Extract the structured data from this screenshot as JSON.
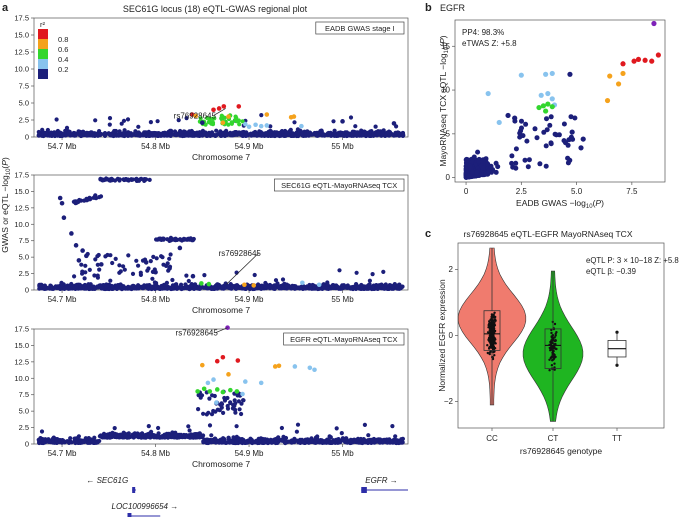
{
  "panel_labels": {
    "a": "a",
    "b": "b",
    "c": "c"
  },
  "colors": {
    "navy": "#1c1f7a",
    "red": "#e0191f",
    "orange": "#f5a21c",
    "green": "#33d62e",
    "light_blue": "#88c3ee",
    "purple": "#7e22b8",
    "violin_cc": "#f07b6e",
    "violin_ct": "#1fb521"
  },
  "chart_data": [
    {
      "id": "regional-top",
      "type": "scatter",
      "title": "SEC61G locus (18) eQTL-GWAS regional plot",
      "legend_title": "r²",
      "legend_labels": [
        "0.8",
        "0.6",
        "0.4",
        "0.2"
      ],
      "legend_colors": [
        "#e0191f",
        "#f5a21c",
        "#33d62e",
        "#88c3ee",
        "#1c1f7a"
      ],
      "box_label": "EADB GWAS stage I",
      "xlabel": "Chromosome 7",
      "xlim": [
        54.67,
        55.07
      ],
      "xticks": [
        54.7,
        54.8,
        54.9,
        55.0
      ],
      "xtick_labels": [
        "54.7 Mb",
        "54.8 Mb",
        "54.9 Mb",
        "55 Mb"
      ],
      "ylim": [
        0,
        17.5
      ],
      "yticks": [
        0,
        2.5,
        5,
        7.5,
        10,
        12.5,
        15,
        17.5
      ],
      "ytick_labels": [
        "0",
        "2.5",
        "5.0",
        "7.5",
        "10.0",
        "12.5",
        "15.0",
        "17.5"
      ],
      "annotation": {
        "label": "rs76928645",
        "x": 54.875,
        "y": 4.2
      },
      "points": [
        {
          "x": 54.862,
          "y": 4.0,
          "c": "red"
        },
        {
          "x": 54.868,
          "y": 4.2,
          "c": "red"
        },
        {
          "x": 54.873,
          "y": 4.5,
          "c": "red"
        },
        {
          "x": 54.889,
          "y": 4.5,
          "c": "red"
        },
        {
          "x": 54.839,
          "y": 3.3,
          "c": "red"
        },
        {
          "x": 54.843,
          "y": 3.1,
          "c": "orange"
        },
        {
          "x": 54.878,
          "y": 3.0,
          "c": "orange"
        },
        {
          "x": 54.945,
          "y": 2.9,
          "c": "orange"
        },
        {
          "x": 54.948,
          "y": 3.0,
          "c": "orange"
        },
        {
          "x": 54.919,
          "y": 3.3,
          "c": "orange"
        },
        {
          "x": 54.896,
          "y": 1.9,
          "c": "light_blue"
        },
        {
          "x": 54.907,
          "y": 1.8,
          "c": "light_blue"
        },
        {
          "x": 54.913,
          "y": 1.6,
          "c": "light_blue"
        },
        {
          "x": 54.919,
          "y": 1.7,
          "c": "light_blue"
        },
        {
          "x": 54.956,
          "y": 1.6,
          "c": "light_blue"
        },
        {
          "x": 54.9,
          "y": 1.5,
          "c": "light_blue"
        },
        {
          "x": 54.872,
          "y": 2.1,
          "c": "orange"
        },
        {
          "x": 55.0,
          "y": 2.3,
          "c": "navy"
        },
        {
          "x": 55.055,
          "y": 2.0,
          "c": "navy"
        },
        {
          "x": 54.85,
          "y": 2.1,
          "c": "navy"
        }
      ]
    },
    {
      "id": "regional-middle",
      "type": "scatter",
      "box_label": "SEC61G eQTL-MayoRNAseq TCX",
      "xlabel": "Chromosome 7",
      "xlim": [
        54.67,
        55.07
      ],
      "xticks": [
        54.7,
        54.8,
        54.9,
        55.0
      ],
      "xtick_labels": [
        "54.7 Mb",
        "54.8 Mb",
        "54.9 Mb",
        "55 Mb"
      ],
      "ylabel": "GWAS or eQTL −log10(P)",
      "ylim": [
        0,
        17.5
      ],
      "yticks": [
        0,
        2.5,
        5,
        7.5,
        10,
        12.5,
        15,
        17.5
      ],
      "ytick_labels": [
        "0",
        "2.5",
        "5.0",
        "7.5",
        "10.0",
        "12.5",
        "15.0",
        "17.5"
      ],
      "annotation": {
        "label": "rs76928645",
        "x": 54.876,
        "y": 0.9
      },
      "points": [
        {
          "x": 54.7,
          "y": 13.2,
          "c": "navy"
        },
        {
          "x": 54.698,
          "y": 14.0,
          "c": "navy"
        },
        {
          "x": 54.702,
          "y": 11.0,
          "c": "navy"
        },
        {
          "x": 54.71,
          "y": 8.6,
          "c": "navy"
        },
        {
          "x": 54.715,
          "y": 6.8,
          "c": "navy"
        },
        {
          "x": 54.718,
          "y": 4.5,
          "c": "navy"
        },
        {
          "x": 54.722,
          "y": 6.0,
          "c": "navy"
        },
        {
          "x": 54.726,
          "y": 5.2,
          "c": "navy"
        },
        {
          "x": 54.742,
          "y": 3.9,
          "c": "navy"
        },
        {
          "x": 54.79,
          "y": 4.2,
          "c": "navy"
        },
        {
          "x": 54.805,
          "y": 7.8,
          "c": "navy"
        },
        {
          "x": 54.815,
          "y": 3.3,
          "c": "navy"
        },
        {
          "x": 54.8,
          "y": 2.7,
          "c": "navy"
        },
        {
          "x": 54.826,
          "y": 6.4,
          "c": "navy"
        },
        {
          "x": 54.84,
          "y": 2.1,
          "c": "navy"
        },
        {
          "x": 54.849,
          "y": 1.0,
          "c": "green"
        },
        {
          "x": 54.857,
          "y": 0.9,
          "c": "green"
        },
        {
          "x": 54.895,
          "y": 0.8,
          "c": "orange"
        },
        {
          "x": 54.905,
          "y": 0.7,
          "c": "orange"
        },
        {
          "x": 54.957,
          "y": 1.1,
          "c": "light_blue"
        },
        {
          "x": 54.975,
          "y": 0.8,
          "c": "light_blue"
        }
      ]
    },
    {
      "id": "regional-bottom",
      "type": "scatter",
      "box_label": "EGFR eQTL-MayoRNAseq TCX",
      "xlabel": "Chromosome 7",
      "xlim": [
        54.67,
        55.07
      ],
      "xticks": [
        54.7,
        54.8,
        54.9,
        55.0
      ],
      "xtick_labels": [
        "54.7 Mb",
        "54.8 Mb",
        "54.9 Mb",
        "55 Mb"
      ],
      "ylim": [
        0,
        17.5
      ],
      "yticks": [
        0,
        2.5,
        5,
        7.5,
        10,
        12.5,
        15,
        17.5
      ],
      "ytick_labels": [
        "0",
        "2.5",
        "5.0",
        "7.5",
        "10.0",
        "12.5",
        "15.0",
        "17.5"
      ],
      "annotation": {
        "label": "rs76928645",
        "x": 54.877,
        "y": 17.7
      },
      "points": [
        {
          "x": 54.877,
          "y": 17.7,
          "c": "purple"
        },
        {
          "x": 54.866,
          "y": 12.6,
          "c": "red"
        },
        {
          "x": 54.872,
          "y": 13.2,
          "c": "red"
        },
        {
          "x": 54.888,
          "y": 12.7,
          "c": "red"
        },
        {
          "x": 54.85,
          "y": 12.0,
          "c": "orange"
        },
        {
          "x": 54.928,
          "y": 11.8,
          "c": "orange"
        },
        {
          "x": 54.932,
          "y": 11.9,
          "c": "orange"
        },
        {
          "x": 54.878,
          "y": 10.6,
          "c": "orange"
        },
        {
          "x": 54.949,
          "y": 11.8,
          "c": "light_blue"
        },
        {
          "x": 54.965,
          "y": 11.6,
          "c": "light_blue"
        },
        {
          "x": 54.97,
          "y": 11.3,
          "c": "light_blue"
        },
        {
          "x": 54.896,
          "y": 9.5,
          "c": "light_blue"
        },
        {
          "x": 54.913,
          "y": 9.3,
          "c": "light_blue"
        },
        {
          "x": 54.856,
          "y": 9.3,
          "c": "light_blue"
        },
        {
          "x": 54.862,
          "y": 9.8,
          "c": "light_blue"
        },
        {
          "x": 54.845,
          "y": 8.0,
          "c": "green"
        },
        {
          "x": 54.852,
          "y": 8.4,
          "c": "green"
        },
        {
          "x": 54.858,
          "y": 8.0,
          "c": "green"
        },
        {
          "x": 54.866,
          "y": 8.3,
          "c": "green"
        },
        {
          "x": 54.872,
          "y": 7.9,
          "c": "green"
        },
        {
          "x": 54.88,
          "y": 8.2,
          "c": "green"
        },
        {
          "x": 54.887,
          "y": 8.0,
          "c": "green"
        },
        {
          "x": 54.893,
          "y": 7.6,
          "c": "light_blue"
        },
        {
          "x": 54.865,
          "y": 6.3,
          "c": "light_blue"
        }
      ]
    },
    {
      "id": "egfr-scatter",
      "type": "scatter",
      "title": "EGFR",
      "annotations": [
        "PP4: 98.3%",
        "eTWAS Z: +5.8"
      ],
      "xlabel": "EADB GWAS −log10(P)",
      "ylabel": "MayoRNAseq TCX sQTL −log10(P)",
      "xlim": [
        -0.5,
        9.0
      ],
      "xticks": [
        0,
        2.5,
        5.0,
        7.5
      ],
      "xtick_labels": [
        "0",
        "2.5",
        "5.0",
        "7.5"
      ],
      "ylim": [
        -0.5,
        18.0
      ],
      "yticks": [
        0,
        5,
        10,
        15
      ],
      "ytick_labels": [
        "0",
        "5",
        "10",
        "15"
      ],
      "points": [
        {
          "x": 8.5,
          "y": 17.6,
          "c": "purple"
        },
        {
          "x": 7.6,
          "y": 13.3,
          "c": "red"
        },
        {
          "x": 7.8,
          "y": 13.5,
          "c": "red"
        },
        {
          "x": 8.1,
          "y": 13.4,
          "c": "red"
        },
        {
          "x": 8.4,
          "y": 13.3,
          "c": "red"
        },
        {
          "x": 8.7,
          "y": 14.0,
          "c": "red"
        },
        {
          "x": 7.1,
          "y": 13.0,
          "c": "red"
        },
        {
          "x": 6.5,
          "y": 11.6,
          "c": "orange"
        },
        {
          "x": 7.1,
          "y": 11.9,
          "c": "orange"
        },
        {
          "x": 6.4,
          "y": 8.8,
          "c": "orange"
        },
        {
          "x": 6.9,
          "y": 10.7,
          "c": "orange"
        },
        {
          "x": 3.6,
          "y": 11.8,
          "c": "light_blue"
        },
        {
          "x": 3.9,
          "y": 11.9,
          "c": "light_blue"
        },
        {
          "x": 2.5,
          "y": 11.7,
          "c": "light_blue"
        },
        {
          "x": 3.4,
          "y": 9.4,
          "c": "light_blue"
        },
        {
          "x": 3.7,
          "y": 9.6,
          "c": "light_blue"
        },
        {
          "x": 3.9,
          "y": 9.0,
          "c": "light_blue"
        },
        {
          "x": 4.0,
          "y": 8.3,
          "c": "light_blue"
        },
        {
          "x": 1.0,
          "y": 9.6,
          "c": "light_blue"
        },
        {
          "x": 1.5,
          "y": 6.3,
          "c": "light_blue"
        },
        {
          "x": 4.7,
          "y": 11.8,
          "c": "navy"
        },
        {
          "x": 1.9,
          "y": 7.1,
          "c": "navy"
        },
        {
          "x": 2.2,
          "y": 6.8,
          "c": "navy"
        },
        {
          "x": 3.3,
          "y": 8.0,
          "c": "green"
        },
        {
          "x": 3.5,
          "y": 8.2,
          "c": "green"
        },
        {
          "x": 3.7,
          "y": 8.4,
          "c": "green"
        },
        {
          "x": 3.9,
          "y": 8.1,
          "c": "green"
        },
        {
          "x": 3.6,
          "y": 7.6,
          "c": "green"
        },
        {
          "x": 4.8,
          "y": 5.2,
          "c": "navy"
        },
        {
          "x": 5.3,
          "y": 4.4,
          "c": "navy"
        },
        {
          "x": 5.2,
          "y": 3.4,
          "c": "navy"
        }
      ]
    },
    {
      "id": "violin",
      "type": "violin",
      "title": "rs76928645 eQTL-EGFR MayoRNAseq TCX",
      "annotations": [
        "eQTL P: 3 × 10−18 Z: +5.8",
        "eQTL β: −0.39"
      ],
      "xlabel": "rs76928645 genotype",
      "ylabel": "Normalized EGFR expression",
      "categories": [
        "CC",
        "CT",
        "TT"
      ],
      "ylim": [
        -2.8,
        2.8
      ],
      "yticks": [
        -2,
        0,
        2
      ],
      "ytick_labels": [
        "−2",
        "0",
        "2"
      ],
      "groups": [
        {
          "name": "CC",
          "min": -2.1,
          "q1": -0.45,
          "median": 0.05,
          "q3": 0.75,
          "max": 2.65,
          "color": "violin_cc"
        },
        {
          "name": "CT",
          "min": -2.6,
          "q1": -1.0,
          "median": -0.3,
          "q3": 0.2,
          "max": 1.95,
          "color": "violin_ct"
        },
        {
          "name": "TT",
          "min": -0.9,
          "q1": -0.65,
          "median": -0.4,
          "q3": -0.15,
          "max": 0.1
        }
      ]
    }
  ],
  "gene_track": {
    "genes": [
      {
        "name": "SEC61G",
        "start": 54.775,
        "end": 54.779,
        "strand": "-",
        "row": 0
      },
      {
        "name": "EGFR",
        "start": 55.02,
        "end": 55.07,
        "strand": "+",
        "row": 0
      },
      {
        "name": "LOC100996654",
        "start": 54.77,
        "end": 54.805,
        "strand": "+",
        "row": 1
      }
    ]
  }
}
